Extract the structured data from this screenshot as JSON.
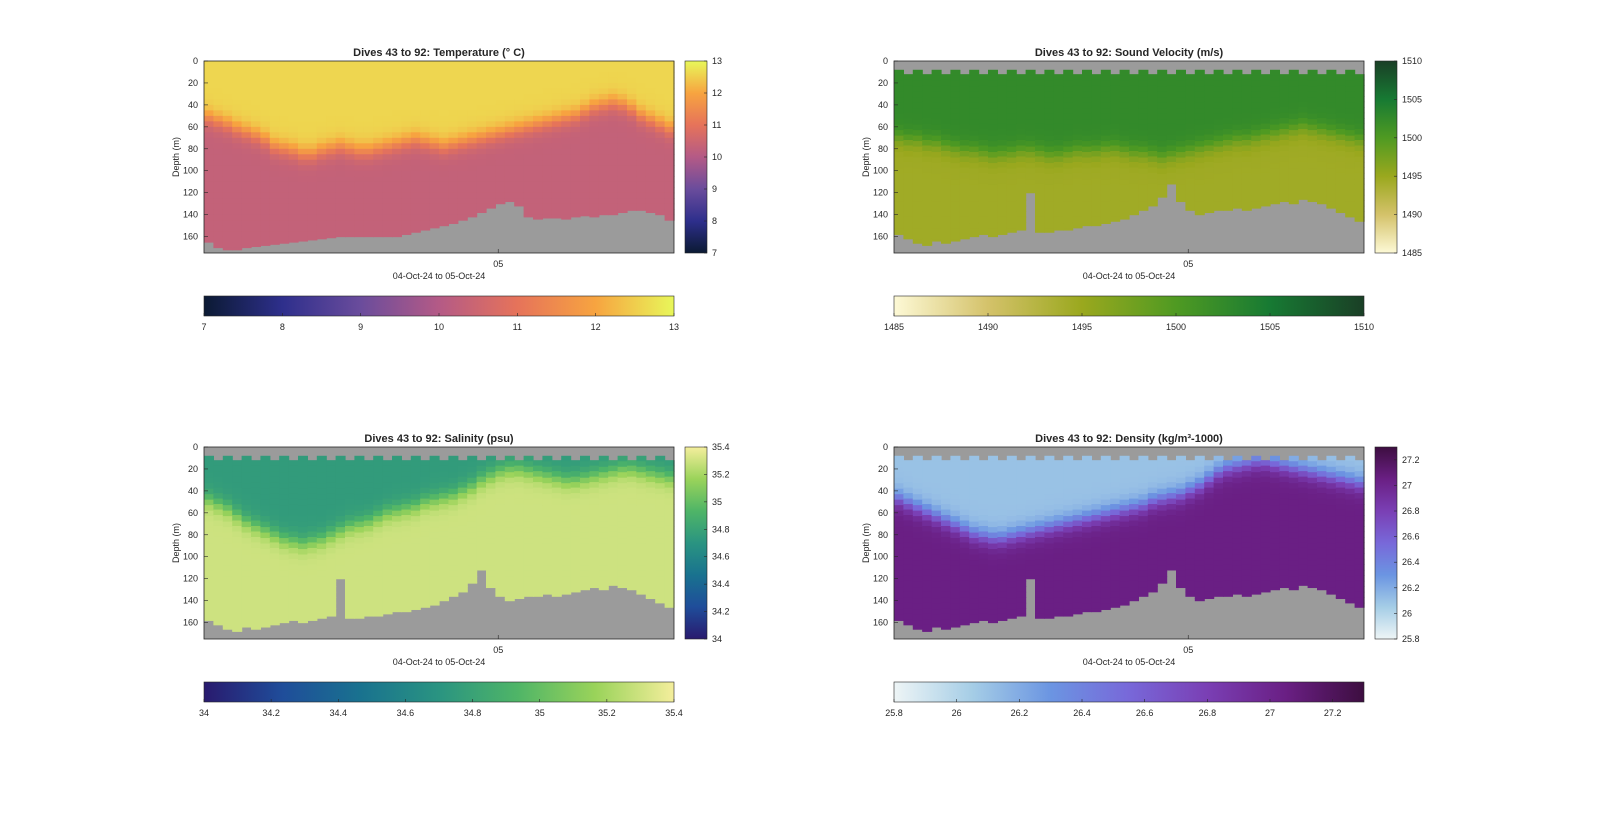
{
  "panels": [
    {
      "id": "temperature",
      "title": "Dives 43 to 92: Temperature (° C)",
      "ylabel": "Depth (m)",
      "xlabel": "04-Oct-24 to 05-Oct-24",
      "xtick": "05",
      "ytick_labels": [
        "0",
        "20",
        "40",
        "60",
        "80",
        "100",
        "120",
        "140",
        "160"
      ],
      "colorbar_ticks": [
        "7",
        "8",
        "9",
        "10",
        "11",
        "12",
        "13"
      ],
      "colormap": [
        "#0b1a33",
        "#2e2f8c",
        "#6a4c9c",
        "#b45a86",
        "#e6735a",
        "#f7a440",
        "#e8f75a"
      ]
    },
    {
      "id": "sound-velocity",
      "title": "Dives 43 to 92: Sound Velocity (m/s)",
      "ylabel": "Depth (m)",
      "xlabel": "04-Oct-24 to 05-Oct-24",
      "xtick": "05",
      "ytick_labels": [
        "0",
        "20",
        "40",
        "60",
        "80",
        "100",
        "120",
        "140",
        "160"
      ],
      "colorbar_ticks": [
        "1485",
        "1490",
        "1495",
        "1500",
        "1505",
        "1510"
      ],
      "colormap": [
        "#fdf9d6",
        "#d4c26a",
        "#9aa81e",
        "#4f9a22",
        "#177a33",
        "#1a3f26"
      ]
    },
    {
      "id": "salinity",
      "title": "Dives 43 to 92: Salinity (psu)",
      "ylabel": "Depth (m)",
      "xlabel": "04-Oct-24 to 05-Oct-24",
      "xtick": "05",
      "ytick_labels": [
        "0",
        "20",
        "40",
        "60",
        "80",
        "100",
        "120",
        "140",
        "160"
      ],
      "colorbar_ticks": [
        "34",
        "34.2",
        "34.4",
        "34.6",
        "34.8",
        "35",
        "35.2",
        "35.4"
      ],
      "colormap": [
        "#291a6e",
        "#1f4d9a",
        "#19728f",
        "#2a9481",
        "#4fb567",
        "#9ad35a",
        "#f4ee9c"
      ]
    },
    {
      "id": "density",
      "title": "Dives 43 to 92: Density (kg/m³-1000)",
      "ylabel": "Depth (m)",
      "xlabel": "04-Oct-24 to 05-Oct-24",
      "xtick": "05",
      "ytick_labels": [
        "0",
        "20",
        "40",
        "60",
        "80",
        "100",
        "120",
        "140",
        "160"
      ],
      "colorbar_ticks": [
        "25.8",
        "26",
        "26.2",
        "26.4",
        "26.6",
        "26.8",
        "27",
        "27.2"
      ],
      "colormap": [
        "#eef5f6",
        "#a5cde6",
        "#6b95e2",
        "#7868d9",
        "#7a3fb4",
        "#6a1f84",
        "#3d0e40"
      ]
    }
  ],
  "chart_data": [
    {
      "type": "heatmap",
      "title": "Dives 43 to 92: Temperature (° C)",
      "xlabel": "04-Oct-24 to 05-Oct-24",
      "ylabel": "Depth (m)",
      "x_ticks": [
        "05"
      ],
      "ylim": [
        0,
        175
      ],
      "y_ticks": [
        0,
        20,
        40,
        60,
        80,
        100,
        120,
        140,
        160
      ],
      "y_reversed": true,
      "clim": [
        7,
        13
      ],
      "colorbar_ticks": [
        7,
        8,
        9,
        10,
        11,
        12,
        13
      ],
      "colorbar_placement": "right-and-bottom",
      "dive_count": 50,
      "profile_depth_ranges": [
        [
          0,
          165
        ],
        [
          0,
          170
        ],
        [
          0,
          172
        ],
        [
          0,
          172
        ],
        [
          0,
          170
        ],
        [
          0,
          169
        ],
        [
          0,
          168
        ],
        [
          0,
          167
        ],
        [
          0,
          166
        ],
        [
          0,
          165
        ],
        [
          0,
          164
        ],
        [
          0,
          163
        ],
        [
          0,
          162
        ],
        [
          0,
          161
        ],
        [
          0,
          160
        ],
        [
          0,
          160
        ],
        [
          0,
          160
        ],
        [
          0,
          160
        ],
        [
          0,
          160
        ],
        [
          0,
          160
        ],
        [
          0,
          160
        ],
        [
          0,
          158
        ],
        [
          0,
          156
        ],
        [
          0,
          154
        ],
        [
          0,
          152
        ],
        [
          0,
          150
        ],
        [
          0,
          148
        ],
        [
          0,
          145
        ],
        [
          0,
          142
        ],
        [
          0,
          138
        ],
        [
          0,
          134
        ],
        [
          0,
          130
        ],
        [
          0,
          128
        ],
        [
          0,
          132
        ],
        [
          0,
          142
        ],
        [
          0,
          144
        ],
        [
          0,
          143
        ],
        [
          0,
          143
        ],
        [
          0,
          144
        ],
        [
          0,
          142
        ],
        [
          0,
          141
        ],
        [
          0,
          142
        ],
        [
          0,
          140
        ],
        [
          0,
          140
        ],
        [
          0,
          138
        ],
        [
          0,
          136
        ],
        [
          0,
          136
        ],
        [
          0,
          138
        ],
        [
          0,
          140
        ],
        [
          0,
          145
        ]
      ],
      "surface_value": 12.6,
      "mixed_layer_depth": [
        52,
        55,
        58,
        62,
        65,
        68,
        72,
        78,
        80,
        82,
        85,
        85,
        82,
        80,
        78,
        80,
        82,
        82,
        80,
        78,
        76,
        74,
        72,
        74,
        76,
        78,
        76,
        74,
        72,
        70,
        68,
        66,
        64,
        62,
        60,
        58,
        56,
        54,
        52,
        50,
        46,
        42,
        40,
        38,
        40,
        44,
        50,
        54,
        58,
        62
      ],
      "deep_value": 10.3
    },
    {
      "type": "heatmap",
      "title": "Dives 43 to 92: Sound Velocity (m/s)",
      "xlabel": "04-Oct-24 to 05-Oct-24",
      "ylabel": "Depth (m)",
      "x_ticks": [
        "05"
      ],
      "ylim": [
        0,
        175
      ],
      "y_ticks": [
        0,
        20,
        40,
        60,
        80,
        100,
        120,
        140,
        160
      ],
      "y_reversed": true,
      "clim": [
        1485,
        1510
      ],
      "colorbar_ticks": [
        1485,
        1490,
        1495,
        1500,
        1505,
        1510
      ],
      "colorbar_placement": "right-and-bottom",
      "dive_count": 50,
      "profile_depth_ranges": [
        [
          8,
          158
        ],
        [
          12,
          162
        ],
        [
          8,
          166
        ],
        [
          12,
          168
        ],
        [
          8,
          164
        ],
        [
          12,
          166
        ],
        [
          8,
          164
        ],
        [
          12,
          162
        ],
        [
          8,
          160
        ],
        [
          12,
          158
        ],
        [
          8,
          160
        ],
        [
          12,
          158
        ],
        [
          8,
          156
        ],
        [
          12,
          154
        ],
        [
          8,
          120
        ],
        [
          12,
          156
        ],
        [
          8,
          156
        ],
        [
          12,
          154
        ],
        [
          8,
          154
        ],
        [
          12,
          152
        ],
        [
          8,
          150
        ],
        [
          12,
          150
        ],
        [
          8,
          148
        ],
        [
          12,
          146
        ],
        [
          8,
          144
        ],
        [
          12,
          140
        ],
        [
          8,
          136
        ],
        [
          12,
          132
        ],
        [
          8,
          124
        ],
        [
          12,
          112
        ],
        [
          8,
          128
        ],
        [
          12,
          136
        ],
        [
          8,
          140
        ],
        [
          12,
          138
        ],
        [
          8,
          136
        ],
        [
          12,
          136
        ],
        [
          8,
          134
        ],
        [
          12,
          136
        ],
        [
          8,
          134
        ],
        [
          12,
          132
        ],
        [
          8,
          130
        ],
        [
          12,
          128
        ],
        [
          8,
          130
        ],
        [
          12,
          126
        ],
        [
          8,
          128
        ],
        [
          12,
          130
        ],
        [
          8,
          134
        ],
        [
          12,
          138
        ],
        [
          8,
          142
        ],
        [
          12,
          146
        ]
      ],
      "surface_value": 1502.5,
      "thermocline_depth": [
        70,
        72,
        72,
        75,
        75,
        78,
        80,
        82,
        82,
        84,
        86,
        85,
        84,
        82,
        82,
        84,
        86,
        86,
        84,
        82,
        82,
        82,
        80,
        80,
        82,
        84,
        84,
        86,
        88,
        86,
        84,
        82,
        80,
        78,
        76,
        74,
        72,
        72,
        70,
        68,
        66,
        64,
        62,
        60,
        62,
        64,
        66,
        68,
        70,
        72
      ],
      "deep_value": 1494.5
    },
    {
      "type": "heatmap",
      "title": "Dives 43 to 92: Salinity (psu)",
      "xlabel": "04-Oct-24 to 05-Oct-24",
      "ylabel": "Depth (m)",
      "x_ticks": [
        "05"
      ],
      "ylim": [
        0,
        175
      ],
      "y_ticks": [
        0,
        20,
        40,
        60,
        80,
        100,
        120,
        140,
        160
      ],
      "y_reversed": true,
      "clim": [
        34,
        35.4
      ],
      "colorbar_ticks": [
        34,
        34.2,
        34.4,
        34.6,
        34.8,
        35,
        35.2,
        35.4
      ],
      "colorbar_placement": "right-and-bottom",
      "dive_count": 50,
      "profile_depth_ranges": [
        [
          8,
          158
        ],
        [
          12,
          162
        ],
        [
          8,
          166
        ],
        [
          12,
          168
        ],
        [
          8,
          164
        ],
        [
          12,
          166
        ],
        [
          8,
          164
        ],
        [
          12,
          162
        ],
        [
          8,
          160
        ],
        [
          12,
          158
        ],
        [
          8,
          160
        ],
        [
          12,
          158
        ],
        [
          8,
          156
        ],
        [
          12,
          154
        ],
        [
          8,
          120
        ],
        [
          12,
          156
        ],
        [
          8,
          156
        ],
        [
          12,
          154
        ],
        [
          8,
          154
        ],
        [
          12,
          152
        ],
        [
          8,
          150
        ],
        [
          12,
          150
        ],
        [
          8,
          148
        ],
        [
          12,
          146
        ],
        [
          8,
          144
        ],
        [
          12,
          140
        ],
        [
          8,
          136
        ],
        [
          12,
          132
        ],
        [
          8,
          124
        ],
        [
          12,
          112
        ],
        [
          8,
          128
        ],
        [
          12,
          136
        ],
        [
          8,
          140
        ],
        [
          12,
          138
        ],
        [
          8,
          136
        ],
        [
          12,
          136
        ],
        [
          8,
          134
        ],
        [
          12,
          136
        ],
        [
          8,
          134
        ],
        [
          12,
          132
        ],
        [
          8,
          130
        ],
        [
          12,
          128
        ],
        [
          8,
          130
        ],
        [
          12,
          126
        ],
        [
          8,
          128
        ],
        [
          12,
          130
        ],
        [
          8,
          134
        ],
        [
          12,
          138
        ],
        [
          8,
          142
        ],
        [
          12,
          146
        ]
      ],
      "surface_value": 34.75,
      "halocline_depth": [
        48,
        52,
        56,
        62,
        68,
        72,
        76,
        80,
        84,
        86,
        88,
        86,
        84,
        80,
        76,
        72,
        70,
        68,
        64,
        60,
        58,
        56,
        54,
        50,
        48,
        46,
        44,
        40,
        36,
        30,
        26,
        22,
        20,
        20,
        22,
        24,
        26,
        28,
        30,
        30,
        28,
        26,
        24,
        22,
        20,
        20,
        22,
        24,
        26,
        28
      ],
      "deep_value": 35.3
    },
    {
      "type": "heatmap",
      "title": "Dives 43 to 92: Density (kg/m³-1000)",
      "xlabel": "04-Oct-24 to 05-Oct-24",
      "ylabel": "Depth (m)",
      "x_ticks": [
        "05"
      ],
      "ylim": [
        0,
        175
      ],
      "y_ticks": [
        0,
        20,
        40,
        60,
        80,
        100,
        120,
        140,
        160
      ],
      "y_reversed": true,
      "clim": [
        25.8,
        27.3
      ],
      "colorbar_ticks": [
        25.8,
        26,
        26.2,
        26.4,
        26.6,
        26.8,
        27,
        27.2
      ],
      "colorbar_placement": "right-and-bottom",
      "dive_count": 50,
      "profile_depth_ranges": [
        [
          8,
          158
        ],
        [
          12,
          162
        ],
        [
          8,
          166
        ],
        [
          12,
          168
        ],
        [
          8,
          164
        ],
        [
          12,
          166
        ],
        [
          8,
          164
        ],
        [
          12,
          162
        ],
        [
          8,
          160
        ],
        [
          12,
          158
        ],
        [
          8,
          160
        ],
        [
          12,
          158
        ],
        [
          8,
          156
        ],
        [
          12,
          154
        ],
        [
          8,
          120
        ],
        [
          12,
          156
        ],
        [
          8,
          156
        ],
        [
          12,
          154
        ],
        [
          8,
          154
        ],
        [
          12,
          152
        ],
        [
          8,
          150
        ],
        [
          12,
          150
        ],
        [
          8,
          148
        ],
        [
          12,
          146
        ],
        [
          8,
          144
        ],
        [
          12,
          140
        ],
        [
          8,
          136
        ],
        [
          12,
          132
        ],
        [
          8,
          124
        ],
        [
          12,
          112
        ],
        [
          8,
          128
        ],
        [
          12,
          136
        ],
        [
          8,
          140
        ],
        [
          12,
          138
        ],
        [
          8,
          136
        ],
        [
          12,
          136
        ],
        [
          8,
          134
        ],
        [
          12,
          136
        ],
        [
          8,
          134
        ],
        [
          12,
          132
        ],
        [
          8,
          130
        ],
        [
          12,
          128
        ],
        [
          8,
          130
        ],
        [
          12,
          126
        ],
        [
          8,
          128
        ],
        [
          12,
          130
        ],
        [
          8,
          134
        ],
        [
          12,
          138
        ],
        [
          8,
          142
        ],
        [
          12,
          146
        ]
      ],
      "surface_value": 26.1,
      "pycnocline_depth": [
        48,
        52,
        56,
        60,
        64,
        68,
        72,
        76,
        80,
        82,
        84,
        84,
        82,
        80,
        78,
        76,
        74,
        72,
        70,
        68,
        66,
        64,
        62,
        60,
        58,
        56,
        54,
        50,
        48,
        46,
        44,
        40,
        36,
        30,
        24,
        20,
        18,
        16,
        14,
        14,
        16,
        18,
        20,
        22,
        24,
        26,
        28,
        30,
        32,
        34
      ],
      "deep_value": 27.05
    }
  ]
}
